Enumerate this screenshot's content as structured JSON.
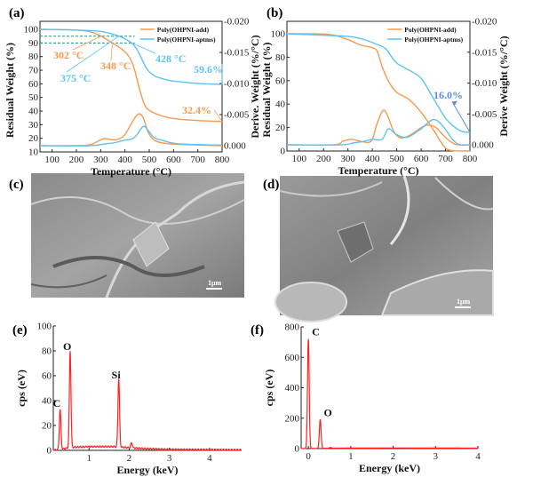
{
  "panels": {
    "a": "(a)",
    "b": "(b)",
    "c": "(c)",
    "d": "(d)",
    "e": "(e)",
    "f": "(f)"
  },
  "sem": {
    "c_scale_bar": "1μm",
    "d_scale_bar": "1μm"
  },
  "colors": {
    "add": "#f59a4f",
    "aptms": "#5cc2f2",
    "guide": "#1a9a7a",
    "eds": "#ff2020",
    "annotation_b": "#5b8fd9"
  },
  "chart_data": [
    {
      "id": "a",
      "type": "line",
      "xlabel": "Temperature (°C)",
      "ylabel": "Residual Weight (%)",
      "y2label": "Derive. Weight (%/°C)",
      "xlim": [
        50,
        800
      ],
      "ylim": [
        10,
        105.9
      ],
      "y2lim": [
        0.001,
        -0.02
      ],
      "xticks": [
        100,
        200,
        300,
        400,
        500,
        600,
        700,
        800
      ],
      "yticks": [
        10,
        20,
        30,
        40,
        50,
        60,
        70,
        80,
        90,
        100
      ],
      "y2ticks": [
        "0.000",
        "-0.005",
        "-0.010",
        "-0.015",
        "-0.020"
      ],
      "legend": {
        "position": "top-right",
        "entries": [
          "Poly(OHPNI-add)",
          "Poly(OHPNI-aptms)"
        ]
      },
      "series": [
        {
          "name": "Poly(OHPNI-add)",
          "axis": "left",
          "color_key": "add",
          "points": [
            [
              50,
              100
            ],
            [
              200,
              99.5
            ],
            [
              260,
              98
            ],
            [
              302,
              95
            ],
            [
              348,
              90
            ],
            [
              390,
              85
            ],
            [
              420,
              79
            ],
            [
              440,
              70
            ],
            [
              460,
              56
            ],
            [
              480,
              45
            ],
            [
              500,
              40.5
            ],
            [
              550,
              36.5
            ],
            [
              600,
              34.5
            ],
            [
              700,
              33
            ],
            [
              800,
              32.4
            ]
          ]
        },
        {
          "name": "Poly(OHPNI-aptms)",
          "axis": "left",
          "color_key": "aptms",
          "points": [
            [
              50,
              100
            ],
            [
              200,
              99.5
            ],
            [
              300,
              98.5
            ],
            [
              375,
              95
            ],
            [
              405,
              92.5
            ],
            [
              428,
              90
            ],
            [
              450,
              85
            ],
            [
              470,
              78
            ],
            [
              490,
              71
            ],
            [
              520,
              66
            ],
            [
              560,
              63.5
            ],
            [
              600,
              62
            ],
            [
              700,
              60.3
            ],
            [
              800,
              59.6
            ]
          ]
        },
        {
          "name": "Poly(OHPNI-add)",
          "axis": "right",
          "color_key": "add",
          "points": [
            [
              50,
              0
            ],
            [
              200,
              0
            ],
            [
              260,
              -0.0002
            ],
            [
              310,
              -0.0011
            ],
            [
              340,
              -0.001
            ],
            [
              370,
              -0.001
            ],
            [
              400,
              -0.0018
            ],
            [
              430,
              -0.0038
            ],
            [
              455,
              -0.0051
            ],
            [
              475,
              -0.0045
            ],
            [
              495,
              -0.0022
            ],
            [
              520,
              -0.0009
            ],
            [
              560,
              -0.0004
            ],
            [
              620,
              -0.0002
            ],
            [
              800,
              0
            ]
          ]
        },
        {
          "name": "Poly(OHPNI-aptms)",
          "axis": "right",
          "color_key": "aptms",
          "points": [
            [
              50,
              0
            ],
            [
              250,
              0
            ],
            [
              320,
              -0.0003
            ],
            [
              360,
              -0.0005
            ],
            [
              400,
              -0.0009
            ],
            [
              430,
              -0.0011
            ],
            [
              450,
              -0.0018
            ],
            [
              475,
              -0.0031
            ],
            [
              495,
              -0.0025
            ],
            [
              520,
              -0.0013
            ],
            [
              560,
              -0.0008
            ],
            [
              620,
              -0.0003
            ],
            [
              800,
              -0.0001
            ]
          ]
        }
      ],
      "guides": [
        95,
        90
      ],
      "annotations": [
        {
          "text": "302 °C",
          "color_key": "add"
        },
        {
          "text": "348 °C",
          "color_key": "add"
        },
        {
          "text": "375 °C",
          "color_key": "aptms"
        },
        {
          "text": "428 °C",
          "color_key": "aptms"
        },
        {
          "text": "59.6%",
          "color_key": "aptms"
        },
        {
          "text": "32.4%",
          "color_key": "add"
        }
      ]
    },
    {
      "id": "b",
      "type": "line",
      "xlabel": "Temperature (°C)",
      "ylabel": "Residual Weight (%)",
      "y2label": "Derive Weight (%/°C)",
      "xlim": [
        50,
        800
      ],
      "ylim": [
        0,
        110.6
      ],
      "y2lim": [
        0.001,
        -0.02
      ],
      "xticks": [
        100,
        200,
        300,
        400,
        500,
        600,
        700,
        800
      ],
      "yticks": [
        0,
        20,
        40,
        60,
        80,
        100
      ],
      "y2ticks": [
        "0.000",
        "-0.005",
        "-0.010",
        "-0.015",
        "-0.020"
      ],
      "legend": {
        "position": "top-right",
        "entries": [
          "Poly(OHPNI-add)",
          "Poly(OHPNI-aptms)"
        ]
      },
      "series": [
        {
          "name": "Poly(OHPNI-add)",
          "axis": "left",
          "color_key": "add",
          "points": [
            [
              50,
              100
            ],
            [
              220,
              99.5
            ],
            [
              300,
              95
            ],
            [
              350,
              90.5
            ],
            [
              400,
              88
            ],
            [
              420,
              85
            ],
            [
              440,
              72
            ],
            [
              470,
              58
            ],
            [
              500,
              50
            ],
            [
              550,
              44
            ],
            [
              600,
              33
            ],
            [
              650,
              18
            ],
            [
              690,
              5
            ],
            [
              720,
              0.5
            ],
            [
              800,
              0
            ]
          ]
        },
        {
          "name": "Poly(OHPNI-aptms)",
          "axis": "left",
          "color_key": "aptms",
          "points": [
            [
              50,
              100
            ],
            [
              280,
              98
            ],
            [
              350,
              96
            ],
            [
              400,
              92.5
            ],
            [
              450,
              88
            ],
            [
              470,
              83
            ],
            [
              500,
              75
            ],
            [
              550,
              69
            ],
            [
              600,
              62
            ],
            [
              650,
              45
            ],
            [
              700,
              28
            ],
            [
              740,
              20
            ],
            [
              770,
              16.5
            ],
            [
              800,
              16
            ]
          ]
        },
        {
          "name": "Poly(OHPNI-add)",
          "axis": "right",
          "color_key": "add",
          "points": [
            [
              50,
              0
            ],
            [
              240,
              0
            ],
            [
              280,
              -0.0006
            ],
            [
              315,
              -0.0009
            ],
            [
              350,
              -0.0006
            ],
            [
              395,
              -0.0006
            ],
            [
              420,
              -0.0035
            ],
            [
              445,
              -0.0056
            ],
            [
              465,
              -0.0045
            ],
            [
              490,
              -0.002
            ],
            [
              520,
              -0.0011
            ],
            [
              560,
              -0.0017
            ],
            [
              600,
              -0.0028
            ],
            [
              630,
              -0.0032
            ],
            [
              660,
              -0.0028
            ],
            [
              700,
              -0.0012
            ],
            [
              740,
              -0.0001
            ],
            [
              800,
              0
            ]
          ]
        },
        {
          "name": "Poly(OHPNI-aptms)",
          "axis": "right",
          "color_key": "aptms",
          "points": [
            [
              50,
              0
            ],
            [
              270,
              0
            ],
            [
              320,
              -0.0003
            ],
            [
              370,
              -0.0006
            ],
            [
              400,
              -0.0009
            ],
            [
              440,
              -0.0009
            ],
            [
              465,
              -0.0026
            ],
            [
              490,
              -0.0019
            ],
            [
              520,
              -0.0013
            ],
            [
              550,
              -0.0013
            ],
            [
              600,
              -0.0026
            ],
            [
              650,
              -0.0041
            ],
            [
              690,
              -0.003
            ],
            [
              730,
              -0.0008
            ],
            [
              760,
              0
            ],
            [
              800,
              0
            ]
          ]
        }
      ],
      "annotations": [
        {
          "text": "16.0%",
          "color_key": "annotation_b"
        }
      ]
    },
    {
      "id": "e",
      "type": "line",
      "xlabel": "Energy (keV)",
      "ylabel": "cps (eV)",
      "xlim": [
        0.11,
        4.8
      ],
      "ylim": [
        0,
        100
      ],
      "xticks": [
        1,
        2,
        3,
        4
      ],
      "yticks": [
        0,
        20,
        40,
        60,
        80,
        100
      ],
      "peaks": [
        {
          "label": "C",
          "energy": 0.28,
          "cps": 32
        },
        {
          "label": "O",
          "energy": 0.53,
          "cps": 78
        },
        {
          "label": "Si",
          "energy": 1.74,
          "cps": 55
        },
        {
          "label": "",
          "energy": 2.06,
          "cps": 4
        }
      ],
      "background": [
        [
          0.11,
          0
        ],
        [
          0.6,
          2.5
        ],
        [
          1.0,
          3
        ],
        [
          1.6,
          3
        ],
        [
          2.3,
          1.5
        ],
        [
          3,
          0.7
        ],
        [
          4.8,
          0.3
        ]
      ]
    },
    {
      "id": "f",
      "type": "line",
      "xlabel": "Energy (keV)",
      "ylabel": "cps (eV)",
      "xlim": [
        -0.17,
        4
      ],
      "ylim": [
        0,
        800
      ],
      "xticks": [
        0,
        1,
        2,
        3,
        4
      ],
      "yticks": [
        0,
        200,
        400,
        600,
        800
      ],
      "peaks": [
        {
          "label": "C",
          "energy": 0.0,
          "cps": 720
        },
        {
          "label": "O",
          "energy": 0.28,
          "cps": 190
        },
        {
          "label": "",
          "energy": 0.52,
          "cps": 5
        }
      ],
      "background": [
        [
          -0.17,
          0
        ],
        [
          0.6,
          3
        ],
        [
          2,
          4
        ],
        [
          4,
          3
        ]
      ]
    }
  ]
}
